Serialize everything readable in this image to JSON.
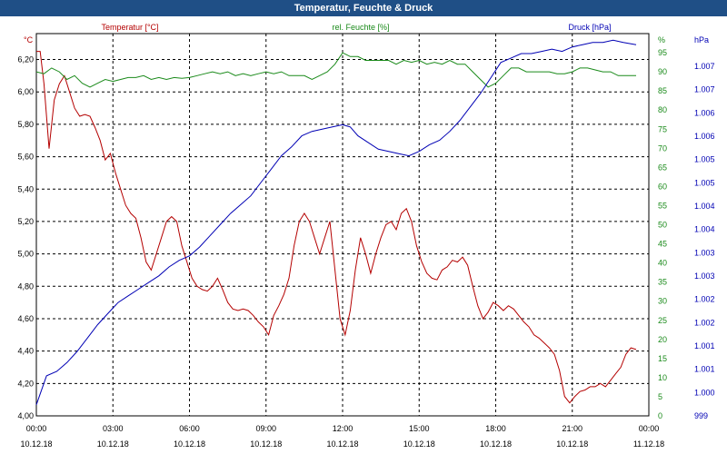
{
  "window": {
    "title": "Temperatur, Feuchte & Druck"
  },
  "colors": {
    "temperature": "#b40000",
    "humidity": "#1a8a1a",
    "pressure": "#0000b4",
    "titlebar": "#1f4f86"
  },
  "chart_data": {
    "type": "line",
    "grid": true,
    "x_ticks": {
      "times": [
        "00:00",
        "03:00",
        "06:00",
        "09:00",
        "12:00",
        "15:00",
        "18:00",
        "21:00",
        "00:00"
      ],
      "dates": [
        "10.12.18",
        "10.12.18",
        "10.12.18",
        "10.12.18",
        "10.12.18",
        "10.12.18",
        "10.12.18",
        "10.12.18",
        "11.12.18"
      ]
    },
    "x_range_hours": [
      0,
      24
    ],
    "axes": {
      "left": {
        "unit": "°C",
        "ylim": [
          4.0,
          6.36
        ],
        "ticks": [
          "4,00",
          "4,20",
          "4,40",
          "4,60",
          "4,80",
          "5,00",
          "5,20",
          "5,40",
          "5,60",
          "5,80",
          "6,00",
          "6,20"
        ]
      },
      "right1": {
        "unit": "%",
        "ylim": [
          0,
          100
        ],
        "ticks": [
          "0",
          "5",
          "10",
          "15",
          "20",
          "25",
          "30",
          "35",
          "40",
          "45",
          "50",
          "55",
          "60",
          "65",
          "70",
          "75",
          "80",
          "85",
          "90",
          "95",
          "%"
        ]
      },
      "right2": {
        "unit": "hPa",
        "ylim": [
          999,
          1007.6
        ],
        "ticks": [
          "999",
          "1.000",
          "1.001",
          "1.001",
          "1.002",
          "1.002",
          "1.003",
          "1.003",
          "1.004",
          "1.004",
          "1.005",
          "1.005",
          "1.006",
          "1.006",
          "1.007",
          "1.007",
          "hPa"
        ]
      }
    },
    "series": [
      {
        "name": "Temperatur [°C]",
        "axis": "left",
        "color": "#b40000",
        "points": [
          [
            0,
            6.25
          ],
          [
            0.15,
            6.25
          ],
          [
            0.3,
            6.05
          ],
          [
            0.5,
            5.65
          ],
          [
            0.7,
            5.95
          ],
          [
            0.9,
            6.05
          ],
          [
            1.1,
            6.1
          ],
          [
            1.3,
            6.0
          ],
          [
            1.5,
            5.9
          ],
          [
            1.7,
            5.85
          ],
          [
            1.9,
            5.86
          ],
          [
            2.1,
            5.85
          ],
          [
            2.3,
            5.78
          ],
          [
            2.5,
            5.7
          ],
          [
            2.7,
            5.58
          ],
          [
            2.9,
            5.62
          ],
          [
            3.1,
            5.5
          ],
          [
            3.3,
            5.4
          ],
          [
            3.5,
            5.3
          ],
          [
            3.7,
            5.25
          ],
          [
            3.9,
            5.22
          ],
          [
            4.1,
            5.1
          ],
          [
            4.3,
            4.95
          ],
          [
            4.5,
            4.9
          ],
          [
            4.7,
            5.0
          ],
          [
            4.9,
            5.1
          ],
          [
            5.1,
            5.2
          ],
          [
            5.3,
            5.23
          ],
          [
            5.5,
            5.2
          ],
          [
            5.7,
            5.05
          ],
          [
            5.9,
            4.95
          ],
          [
            6.1,
            4.85
          ],
          [
            6.3,
            4.8
          ],
          [
            6.5,
            4.78
          ],
          [
            6.7,
            4.77
          ],
          [
            6.9,
            4.8
          ],
          [
            7.1,
            4.85
          ],
          [
            7.3,
            4.78
          ],
          [
            7.5,
            4.7
          ],
          [
            7.7,
            4.66
          ],
          [
            7.9,
            4.65
          ],
          [
            8.1,
            4.66
          ],
          [
            8.3,
            4.65
          ],
          [
            8.5,
            4.62
          ],
          [
            8.7,
            4.58
          ],
          [
            8.9,
            4.55
          ],
          [
            9.1,
            4.5
          ],
          [
            9.3,
            4.62
          ],
          [
            9.5,
            4.68
          ],
          [
            9.7,
            4.75
          ],
          [
            9.9,
            4.85
          ],
          [
            10.1,
            5.05
          ],
          [
            10.3,
            5.2
          ],
          [
            10.5,
            5.25
          ],
          [
            10.7,
            5.2
          ],
          [
            10.9,
            5.1
          ],
          [
            11.1,
            5.0
          ],
          [
            11.3,
            5.1
          ],
          [
            11.5,
            5.2
          ],
          [
            11.7,
            4.9
          ],
          [
            11.9,
            4.6
          ],
          [
            12.1,
            4.5
          ],
          [
            12.3,
            4.65
          ],
          [
            12.5,
            4.9
          ],
          [
            12.7,
            5.1
          ],
          [
            12.9,
            5.0
          ],
          [
            13.1,
            4.88
          ],
          [
            13.3,
            5.0
          ],
          [
            13.5,
            5.1
          ],
          [
            13.7,
            5.18
          ],
          [
            13.9,
            5.2
          ],
          [
            14.1,
            5.15
          ],
          [
            14.3,
            5.25
          ],
          [
            14.5,
            5.28
          ],
          [
            14.7,
            5.2
          ],
          [
            14.9,
            5.05
          ],
          [
            15.1,
            4.95
          ],
          [
            15.3,
            4.88
          ],
          [
            15.5,
            4.85
          ],
          [
            15.7,
            4.84
          ],
          [
            15.9,
            4.9
          ],
          [
            16.1,
            4.92
          ],
          [
            16.3,
            4.96
          ],
          [
            16.5,
            4.95
          ],
          [
            16.7,
            4.98
          ],
          [
            16.9,
            4.93
          ],
          [
            17.1,
            4.8
          ],
          [
            17.3,
            4.68
          ],
          [
            17.5,
            4.6
          ],
          [
            17.7,
            4.64
          ],
          [
            17.9,
            4.7
          ],
          [
            18.1,
            4.68
          ],
          [
            18.3,
            4.65
          ],
          [
            18.5,
            4.68
          ],
          [
            18.7,
            4.66
          ],
          [
            18.9,
            4.62
          ],
          [
            19.1,
            4.58
          ],
          [
            19.3,
            4.55
          ],
          [
            19.5,
            4.5
          ],
          [
            19.7,
            4.48
          ],
          [
            19.9,
            4.45
          ],
          [
            20.1,
            4.42
          ],
          [
            20.3,
            4.38
          ],
          [
            20.5,
            4.28
          ],
          [
            20.7,
            4.12
          ],
          [
            20.9,
            4.08
          ],
          [
            21.1,
            4.12
          ],
          [
            21.3,
            4.15
          ],
          [
            21.5,
            4.16
          ],
          [
            21.7,
            4.18
          ],
          [
            21.9,
            4.18
          ],
          [
            22.1,
            4.2
          ],
          [
            22.3,
            4.18
          ],
          [
            22.5,
            4.22
          ],
          [
            22.7,
            4.26
          ],
          [
            22.9,
            4.3
          ],
          [
            23.1,
            4.38
          ],
          [
            23.3,
            4.42
          ],
          [
            23.5,
            4.41
          ]
        ]
      },
      {
        "name": "rel. Feuchte [%]",
        "axis": "right1",
        "color": "#1a8a1a",
        "points": [
          [
            0,
            90
          ],
          [
            0.3,
            89.5
          ],
          [
            0.6,
            91
          ],
          [
            0.9,
            90
          ],
          [
            1.2,
            88
          ],
          [
            1.5,
            89
          ],
          [
            1.8,
            87
          ],
          [
            2.1,
            86
          ],
          [
            2.4,
            87
          ],
          [
            2.7,
            88
          ],
          [
            3.0,
            87.5
          ],
          [
            3.3,
            88
          ],
          [
            3.6,
            88.5
          ],
          [
            3.9,
            88.5
          ],
          [
            4.2,
            89
          ],
          [
            4.5,
            88
          ],
          [
            4.8,
            88.5
          ],
          [
            5.1,
            88
          ],
          [
            5.4,
            88.5
          ],
          [
            5.7,
            88.3
          ],
          [
            6.0,
            88.5
          ],
          [
            6.3,
            89
          ],
          [
            6.6,
            89.5
          ],
          [
            6.9,
            90
          ],
          [
            7.2,
            89.5
          ],
          [
            7.5,
            90
          ],
          [
            7.8,
            89
          ],
          [
            8.1,
            89.5
          ],
          [
            8.4,
            89
          ],
          [
            8.7,
            89.5
          ],
          [
            9.0,
            90
          ],
          [
            9.3,
            89.5
          ],
          [
            9.6,
            90
          ],
          [
            9.9,
            89
          ],
          [
            10.2,
            89
          ],
          [
            10.5,
            89
          ],
          [
            10.8,
            88
          ],
          [
            11.1,
            89
          ],
          [
            11.4,
            90
          ],
          [
            11.7,
            92
          ],
          [
            12.0,
            95
          ],
          [
            12.3,
            94
          ],
          [
            12.6,
            94
          ],
          [
            12.9,
            93
          ],
          [
            13.2,
            93
          ],
          [
            13.5,
            93
          ],
          [
            13.8,
            93
          ],
          [
            14.1,
            92
          ],
          [
            14.4,
            93
          ],
          [
            14.7,
            92.5
          ],
          [
            15.0,
            93
          ],
          [
            15.3,
            92
          ],
          [
            15.6,
            92.5
          ],
          [
            15.9,
            92
          ],
          [
            16.2,
            93
          ],
          [
            16.5,
            92
          ],
          [
            16.8,
            92
          ],
          [
            17.1,
            90
          ],
          [
            17.4,
            88
          ],
          [
            17.7,
            86
          ],
          [
            18.0,
            87
          ],
          [
            18.3,
            89
          ],
          [
            18.6,
            91
          ],
          [
            18.9,
            91
          ],
          [
            19.2,
            90
          ],
          [
            19.5,
            90
          ],
          [
            19.8,
            90
          ],
          [
            20.1,
            90
          ],
          [
            20.4,
            89.5
          ],
          [
            20.7,
            89.5
          ],
          [
            21.0,
            90
          ],
          [
            21.3,
            91
          ],
          [
            21.6,
            91
          ],
          [
            21.9,
            90.5
          ],
          [
            22.2,
            90
          ],
          [
            22.5,
            90
          ],
          [
            22.8,
            89
          ],
          [
            23.1,
            89
          ],
          [
            23.5,
            89
          ]
        ]
      },
      {
        "name": "Druck [hPa]",
        "axis": "right2",
        "color": "#0000b4",
        "points": [
          [
            0,
            999.25
          ],
          [
            0.4,
            999.9
          ],
          [
            0.8,
            1000.0
          ],
          [
            1.2,
            1000.2
          ],
          [
            1.6,
            1000.45
          ],
          [
            2.0,
            1000.75
          ],
          [
            2.4,
            1001.05
          ],
          [
            2.8,
            1001.3
          ],
          [
            3.2,
            1001.55
          ],
          [
            3.6,
            1001.7
          ],
          [
            4.0,
            1001.85
          ],
          [
            4.4,
            1002.0
          ],
          [
            4.8,
            1002.15
          ],
          [
            5.2,
            1002.35
          ],
          [
            5.6,
            1002.5
          ],
          [
            6.0,
            1002.6
          ],
          [
            6.4,
            1002.8
          ],
          [
            6.8,
            1003.05
          ],
          [
            7.2,
            1003.3
          ],
          [
            7.6,
            1003.55
          ],
          [
            8.0,
            1003.75
          ],
          [
            8.4,
            1003.95
          ],
          [
            8.8,
            1004.25
          ],
          [
            9.2,
            1004.55
          ],
          [
            9.6,
            1004.85
          ],
          [
            10.0,
            1005.05
          ],
          [
            10.4,
            1005.3
          ],
          [
            10.8,
            1005.4
          ],
          [
            11.2,
            1005.45
          ],
          [
            11.6,
            1005.5
          ],
          [
            12.0,
            1005.55
          ],
          [
            12.3,
            1005.5
          ],
          [
            12.6,
            1005.3
          ],
          [
            13.0,
            1005.15
          ],
          [
            13.4,
            1005.0
          ],
          [
            13.8,
            1004.95
          ],
          [
            14.2,
            1004.9
          ],
          [
            14.6,
            1004.85
          ],
          [
            15.0,
            1004.95
          ],
          [
            15.4,
            1005.1
          ],
          [
            15.8,
            1005.2
          ],
          [
            16.2,
            1005.4
          ],
          [
            16.6,
            1005.65
          ],
          [
            17.0,
            1005.95
          ],
          [
            17.4,
            1006.25
          ],
          [
            17.8,
            1006.6
          ],
          [
            18.2,
            1006.95
          ],
          [
            18.6,
            1007.05
          ],
          [
            19.0,
            1007.15
          ],
          [
            19.4,
            1007.15
          ],
          [
            19.8,
            1007.2
          ],
          [
            20.2,
            1007.25
          ],
          [
            20.6,
            1007.2
          ],
          [
            21.0,
            1007.3
          ],
          [
            21.4,
            1007.35
          ],
          [
            21.8,
            1007.4
          ],
          [
            22.2,
            1007.4
          ],
          [
            22.6,
            1007.45
          ],
          [
            23.0,
            1007.4
          ],
          [
            23.5,
            1007.35
          ]
        ]
      }
    ]
  }
}
